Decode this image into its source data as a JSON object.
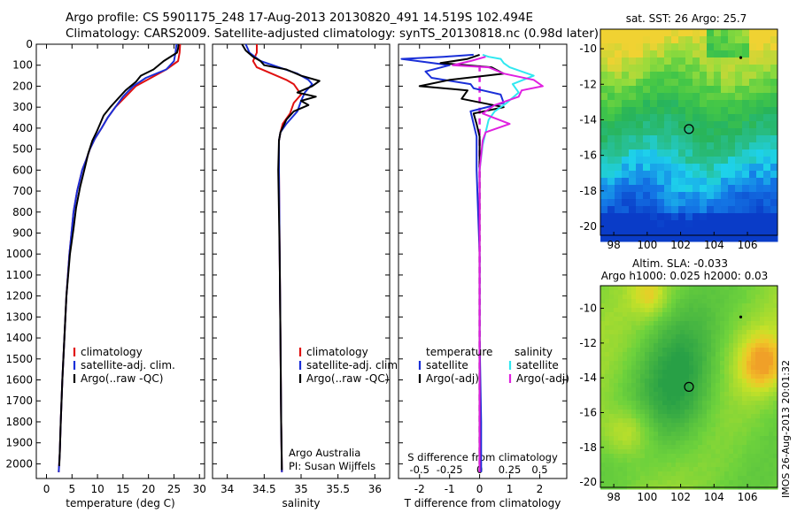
{
  "header": {
    "line1": "Argo profile: CS 5901175_248 17-Aug-2013 20130820_491 14.519S 102.494E",
    "line2": "Climatology: CARS2009. Satellite-adjusted climatology: synTS_20130818.nc (0.98d later)"
  },
  "colors": {
    "climatology": "#e01010",
    "satellite": "#1a2fd8",
    "argo": "#000000",
    "sal_satellite": "#30e8f0",
    "sal_argo": "#e020e0"
  },
  "footer_text": "IMOS 26-Aug-2013 20:01:32",
  "chart_data": [
    {
      "type": "line",
      "name": "temperature_profile",
      "xlabel": "temperature (deg C)",
      "ylabel": "",
      "xlim": [
        -2,
        31
      ],
      "ylim": [
        2070,
        0
      ],
      "xticks": [
        "0",
        "5",
        "10",
        "15",
        "20",
        "25",
        "30"
      ],
      "xtick_values": [
        0,
        5,
        10,
        15,
        20,
        25,
        30
      ],
      "yticks": [
        "0",
        "100",
        "200",
        "300",
        "400",
        "500",
        "600",
        "700",
        "800",
        "900",
        "1000",
        "1100",
        "1200",
        "1300",
        "1400",
        "1500",
        "1600",
        "1700",
        "1800",
        "1900",
        "2000"
      ],
      "ytick_values": [
        0,
        100,
        200,
        300,
        400,
        500,
        600,
        700,
        800,
        900,
        1000,
        1100,
        1200,
        1300,
        1400,
        1500,
        1600,
        1700,
        1800,
        1900,
        2000
      ],
      "legend": [
        "climatology",
        "satellite-adj. clim.",
        "Argo(..raw -QC)"
      ],
      "series": [
        {
          "name": "climatology",
          "color_key": "climatology",
          "x": [
            26.2,
            26.1,
            25.8,
            23.5,
            20.5,
            17.5,
            15.5,
            13.5,
            12.0,
            10.8,
            9.5,
            8.5,
            7.8,
            7.0,
            6.0,
            5.3,
            4.5,
            3.9,
            3.5,
            3.1,
            2.8,
            2.6,
            2.4
          ],
          "y": [
            0,
            40,
            80,
            120,
            160,
            200,
            250,
            300,
            350,
            400,
            450,
            500,
            550,
            600,
            700,
            800,
            1000,
            1200,
            1400,
            1600,
            1800,
            1950,
            2040
          ]
        },
        {
          "name": "satellite-adj. clim.",
          "color_key": "satellite",
          "x": [
            25.5,
            25.3,
            25.0,
            23.5,
            19.5,
            17.0,
            15.0,
            13.5,
            12.0,
            10.8,
            9.5,
            8.5,
            7.8,
            7.0,
            6.0,
            5.3,
            4.5,
            3.9,
            3.5,
            3.1,
            2.8,
            2.6,
            2.4
          ],
          "y": [
            0,
            40,
            80,
            120,
            160,
            200,
            250,
            300,
            350,
            400,
            450,
            500,
            550,
            600,
            700,
            800,
            1000,
            1200,
            1400,
            1600,
            1800,
            1950,
            2040
          ]
        },
        {
          "name": "Argo(..raw -QC)",
          "color_key": "argo",
          "x": [
            25.9,
            25.8,
            25.6,
            23.0,
            21.0,
            18.5,
            17.5,
            15.5,
            14.0,
            12.5,
            11.2,
            10.5,
            9.8,
            9.0,
            8.2,
            7.6,
            6.6,
            5.8,
            5.3,
            4.6,
            3.9,
            3.5,
            3.1,
            2.8,
            2.6,
            2.5
          ],
          "y": [
            0,
            20,
            40,
            80,
            120,
            150,
            180,
            220,
            260,
            300,
            340,
            380,
            420,
            460,
            520,
            580,
            680,
            780,
            880,
            1000,
            1200,
            1400,
            1600,
            1800,
            1950,
            2010
          ]
        }
      ]
    },
    {
      "type": "line",
      "name": "salinity_profile",
      "xlabel": "salinity",
      "xlim": [
        33.8,
        36.2
      ],
      "ylim": [
        2070,
        0
      ],
      "xticks": [
        "34",
        "34.5",
        "35",
        "35.5",
        "36"
      ],
      "xtick_values": [
        34,
        34.5,
        35,
        35.5,
        36
      ],
      "legend": [
        "climatology",
        "satellite-adj. clim.",
        "Argo(..raw -QC)"
      ],
      "annotations": [
        "Argo Australia",
        "PI: Susan Wijffels"
      ],
      "series": [
        {
          "name": "climatology",
          "color_key": "climatology",
          "x": [
            34.4,
            34.4,
            34.35,
            34.4,
            34.6,
            34.8,
            34.9,
            35.0,
            34.9,
            34.85,
            34.75,
            34.72,
            34.7,
            34.7,
            34.71,
            34.72,
            34.73,
            34.74
          ],
          "y": [
            0,
            40,
            80,
            110,
            140,
            170,
            190,
            240,
            280,
            330,
            380,
            420,
            460,
            600,
            1000,
            1400,
            1800,
            2040
          ]
        },
        {
          "name": "satellite-adj. clim.",
          "color_key": "satellite",
          "x": [
            34.25,
            34.3,
            34.45,
            34.7,
            34.95,
            35.1,
            35.15,
            35.05,
            35.0,
            34.95,
            34.8,
            34.72,
            34.7,
            34.7,
            34.71,
            34.72,
            34.73,
            34.74
          ],
          "y": [
            0,
            40,
            80,
            110,
            140,
            170,
            190,
            230,
            270,
            320,
            380,
            420,
            460,
            600,
            1000,
            1400,
            1800,
            2040
          ]
        },
        {
          "name": "Argo(..raw -QC)",
          "color_key": "argo",
          "x": [
            34.2,
            34.25,
            34.35,
            34.45,
            34.5,
            34.8,
            35.0,
            35.25,
            35.15,
            34.95,
            35.2,
            35.0,
            35.1,
            34.9,
            34.8,
            34.72,
            34.7,
            34.69,
            34.7,
            34.71,
            34.72,
            34.73,
            34.74
          ],
          "y": [
            0,
            30,
            60,
            80,
            100,
            120,
            150,
            175,
            200,
            230,
            250,
            270,
            290,
            320,
            360,
            420,
            460,
            600,
            800,
            1000,
            1400,
            1800,
            2030
          ]
        }
      ]
    },
    {
      "type": "line",
      "name": "difference_profile",
      "xlabel": "T difference from climatology",
      "xlabel_top": "S difference from climatology",
      "xlim": [
        -2.7,
        2.9
      ],
      "ylim": [
        2070,
        0
      ],
      "xticks": [
        "-2",
        "-1",
        "0",
        "1",
        "2"
      ],
      "xtick_values": [
        -2,
        -1,
        0,
        1,
        2
      ],
      "top_ticks": [
        "-0.5",
        "-0.25",
        "0",
        "0.25",
        "0.5"
      ],
      "top_tick_values": [
        -2,
        -1,
        0,
        1,
        2
      ],
      "legend": [
        "temperature",
        "satellite",
        "Argo(-adj)",
        "salinity",
        "satellite",
        "Argo(-adj)"
      ],
      "series": [
        {
          "name": "T satellite",
          "color_key": "satellite",
          "x": [
            -0.2,
            -1.2,
            -2.6,
            -1.0,
            -1.8,
            -1.6,
            -0.3,
            -0.2,
            0.7,
            0.8,
            -0.3,
            -0.2,
            -0.1,
            -0.1,
            0.0,
            0.0,
            0.05,
            0.05
          ],
          "y": [
            50,
            60,
            70,
            100,
            130,
            160,
            190,
            210,
            240,
            280,
            320,
            380,
            440,
            600,
            1000,
            1400,
            1800,
            2040
          ]
        },
        {
          "name": "T Argo(-adj)",
          "color_key": "argo",
          "x": [
            0.0,
            -0.4,
            -1.3,
            0.4,
            0.8,
            -1.0,
            -2.0,
            -0.4,
            -0.6,
            0.8,
            -0.2,
            -0.1,
            0.0,
            0.0,
            0.0,
            0.0,
            0.0
          ],
          "y": [
            50,
            70,
            90,
            110,
            140,
            170,
            200,
            220,
            260,
            300,
            330,
            380,
            440,
            600,
            1000,
            1500,
            2040
          ]
        },
        {
          "name": "S satellite",
          "color_key": "sal_satellite",
          "x": [
            0.1,
            0.3,
            0.7,
            0.8,
            1.0,
            1.8,
            1.1,
            1.3,
            0.9,
            0.5,
            0.3,
            0.2,
            0.1,
            0.0
          ],
          "y": [
            50,
            60,
            70,
            90,
            110,
            150,
            190,
            230,
            280,
            320,
            360,
            420,
            480,
            600
          ]
        },
        {
          "name": "S Argo(-adj)",
          "color_key": "sal_argo",
          "x": [
            0.2,
            -0.3,
            -0.9,
            0.3,
            0.8,
            1.8,
            2.1,
            1.4,
            1.3,
            0.5,
            0.1,
            1.0,
            0.2,
            0.1,
            0.0,
            0.0,
            0.0
          ],
          "y": [
            60,
            80,
            100,
            110,
            140,
            170,
            200,
            220,
            250,
            290,
            330,
            380,
            420,
            460,
            600,
            1000,
            2040
          ]
        }
      ]
    },
    {
      "type": "heatmap",
      "name": "sst_map",
      "title": "sat. SST: 26 Argo: 25.7",
      "xlim": [
        97.2,
        107.8
      ],
      "ylim": [
        -20.5,
        -8.9
      ],
      "xticks": [
        "98",
        "100",
        "102",
        "104",
        "106"
      ],
      "xtick_values": [
        98,
        100,
        102,
        104,
        106
      ],
      "yticks": [
        "-10",
        "-12",
        "-14",
        "-16",
        "-18",
        "-20"
      ],
      "ytick_values": [
        -10,
        -12,
        -14,
        -16,
        -18,
        -20
      ],
      "marker": {
        "lon": 102.5,
        "lat": -14.52
      },
      "dot": {
        "lon": 105.6,
        "lat": -10.5
      }
    },
    {
      "type": "heatmap",
      "name": "sla_map",
      "title_lines": [
        "Altim. SLA: -0.033",
        "Argo h1000: 0.025 h2000: 0.03"
      ],
      "xlim": [
        97.2,
        107.8
      ],
      "ylim": [
        -20.3,
        -8.7
      ],
      "xticks": [
        "98",
        "100",
        "102",
        "104",
        "106"
      ],
      "xtick_values": [
        98,
        100,
        102,
        104,
        106
      ],
      "yticks": [
        "-10",
        "-12",
        "-14",
        "-16",
        "-18",
        "-20"
      ],
      "ytick_values": [
        -10,
        -12,
        -14,
        -16,
        -18,
        -20
      ],
      "marker": {
        "lon": 102.5,
        "lat": -14.52
      },
      "dot": {
        "lon": 105.6,
        "lat": -10.5
      }
    }
  ]
}
